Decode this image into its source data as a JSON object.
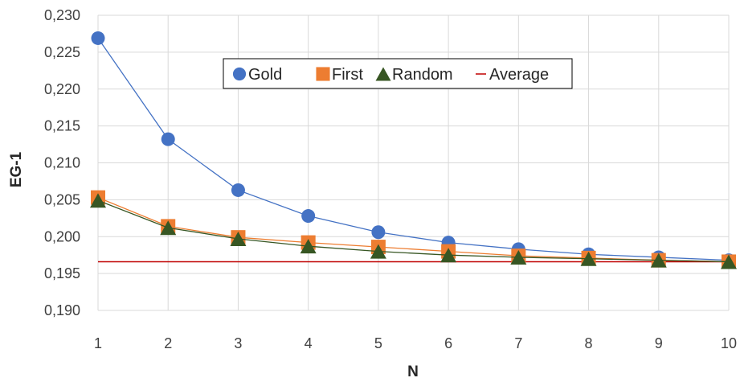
{
  "chart_data": {
    "type": "line",
    "title": "",
    "xlabel": "N",
    "ylabel": "EG-1",
    "x": [
      1,
      2,
      3,
      4,
      5,
      6,
      7,
      8,
      9,
      10
    ],
    "xlim": [
      1,
      10
    ],
    "ylim": [
      0.19,
      0.23
    ],
    "y_ticks": [
      0.19,
      0.195,
      0.2,
      0.205,
      0.21,
      0.215,
      0.22,
      0.225,
      0.23
    ],
    "y_tick_labels": [
      "0,190",
      "0,195",
      "0,200",
      "0,205",
      "0,210",
      "0,215",
      "0,220",
      "0,225",
      "0,230"
    ],
    "x_tick_labels": [
      "1",
      "2",
      "3",
      "4",
      "5",
      "6",
      "7",
      "8",
      "9",
      "10"
    ],
    "grid": true,
    "legend_position": "top-center",
    "series": [
      {
        "name": "Gold",
        "marker": "circle",
        "color": "#4472C4",
        "values": [
          0.2269,
          0.2132,
          0.2063,
          0.2028,
          0.2006,
          0.1992,
          0.1983,
          0.1976,
          0.1972,
          0.1968
        ]
      },
      {
        "name": "First",
        "marker": "square",
        "color": "#ED7D31",
        "values": [
          0.2053,
          0.2014,
          0.1999,
          0.1992,
          0.1986,
          0.198,
          0.1974,
          0.1971,
          0.1968,
          0.1966
        ]
      },
      {
        "name": "Random",
        "marker": "triangle",
        "color": "#375623",
        "values": [
          0.2049,
          0.2012,
          0.1997,
          0.1987,
          0.198,
          0.1975,
          0.1972,
          0.197,
          0.1968,
          0.1966
        ]
      },
      {
        "name": "Average",
        "marker": "none",
        "color": "#C00000",
        "values": [
          0.1966,
          0.1966,
          0.1966,
          0.1966,
          0.1966,
          0.1966,
          0.1966,
          0.1966,
          0.1966,
          0.1966
        ]
      }
    ]
  }
}
